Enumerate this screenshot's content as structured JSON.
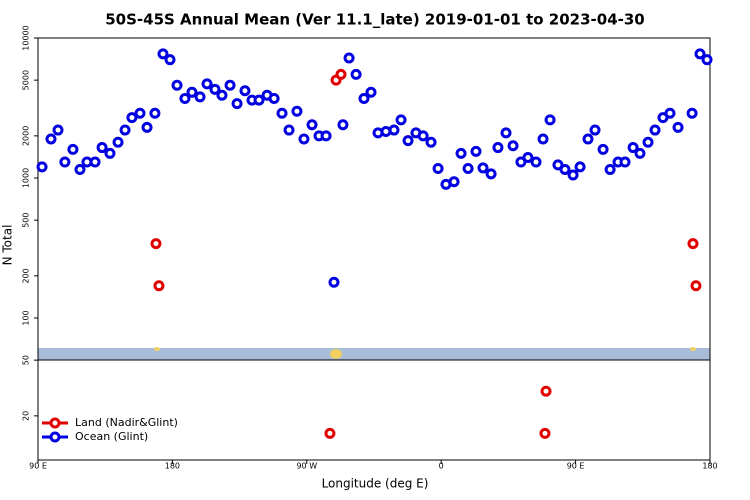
{
  "chart_data": {
    "type": "scatter",
    "title": "50S-45S Annual Mean (Ver 11.1_late)   2019-01-01 to 2023-04-30",
    "x_label": "Longitude (deg E)",
    "y_label": "N Total",
    "log_y": true,
    "legend": "lower left",
    "xlim": [
      90,
      540
    ],
    "xticks": [
      {
        "value": 90,
        "label": "90 E"
      },
      {
        "value": 180,
        "label": "180"
      },
      {
        "value": 270,
        "label": "90 W"
      },
      {
        "value": 360,
        "label": "0"
      },
      {
        "value": 450,
        "label": "90 E"
      },
      {
        "value": 540,
        "label": "180"
      }
    ],
    "ylim": [
      10,
      10000
    ],
    "yticks": [
      20,
      50,
      100,
      200,
      500,
      1000,
      2000,
      5000,
      10000
    ],
    "series": [
      {
        "name": "Land (Nadir&Glint)",
        "color": "#e00000",
        "x": [
          169,
          171,
          289.6,
          292.9,
          285.5,
          430.2,
          429.5,
          528.6,
          530.6
        ],
        "values": [
          340,
          170,
          5000,
          5500,
          15,
          30,
          15,
          340,
          170
        ]
      },
      {
        "name": "Ocean (Glint)",
        "color": "#0000e0",
        "x": [
          92.7,
          98.7,
          103.4,
          108,
          113.4,
          118.1,
          122.8,
          128.2,
          132.9,
          138.2,
          143.6,
          148.3,
          152.9,
          158.3,
          163,
          168.3,
          173.7,
          178.4,
          183.1,
          188.4,
          193.1,
          198.5,
          203.2,
          208.5,
          213.2,
          218.6,
          223.3,
          228.6,
          233.3,
          238,
          243.4,
          248.1,
          253.4,
          258.1,
          263.4,
          268.1,
          273.5,
          278.2,
          282.9,
          288.2,
          294.2,
          298.3,
          303,
          308.3,
          313,
          317.7,
          323,
          328.4,
          333.1,
          337.8,
          343.1,
          347.9,
          353.2,
          357.9,
          363.2,
          368.6,
          373.3,
          378,
          383.3,
          388,
          393.4,
          398,
          403.4,
          408.1,
          413.4,
          418.1,
          423.5,
          428.2,
          432.9,
          438.2,
          442.9,
          448.3,
          453,
          458.3,
          463,
          468.4,
          473.1,
          478.4,
          483.1,
          488.5,
          493.1,
          498.5,
          503.2,
          508.5,
          513.2,
          518.6,
          528,
          533.3,
          538
        ],
        "values": [
          1200,
          1900,
          2200,
          1300,
          1600,
          1150,
          1300,
          1300,
          1650,
          1500,
          1800,
          2200,
          2700,
          2900,
          2300,
          2900,
          7700,
          7000,
          4600,
          3700,
          4100,
          3800,
          4700,
          4300,
          3900,
          4600,
          3400,
          4200,
          3600,
          3600,
          3900,
          3700,
          2900,
          2200,
          3000,
          1900,
          2400,
          2000,
          2000,
          180,
          2400,
          7200,
          5500,
          3700,
          4100,
          2100,
          2150,
          2200,
          2600,
          1850,
          2100,
          2000,
          1800,
          1170,
          900,
          940,
          1500,
          1170,
          1550,
          1180,
          1070,
          1650,
          2100,
          1700,
          1300,
          1400,
          1300,
          1900,
          2600,
          1240,
          1150,
          1050,
          1200,
          1900,
          2200,
          1600,
          1150,
          1300,
          1300,
          1650,
          1500,
          1800,
          2200,
          2700,
          2900,
          2300,
          2900,
          7700,
          7000
        ]
      }
    ]
  }
}
